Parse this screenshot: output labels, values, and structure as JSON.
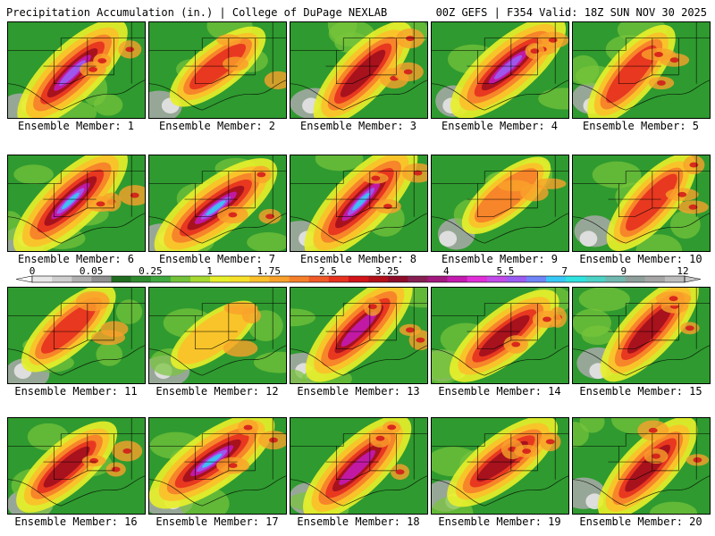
{
  "header": {
    "left": "Precipitation Accumulation (in.) | College of DuPage NEXLAB",
    "right": "00Z GEFS | F354 Valid: 18Z SUN NOV 30 2025"
  },
  "caption_prefix": "Ensemble Member:",
  "members": [
    {
      "id": "1",
      "intensity": 0.85
    },
    {
      "id": "2",
      "intensity": 0.45
    },
    {
      "id": "3",
      "intensity": 0.7
    },
    {
      "id": "4",
      "intensity": 0.85
    },
    {
      "id": "5",
      "intensity": 0.55
    },
    {
      "id": "6",
      "intensity": 0.9
    },
    {
      "id": "7",
      "intensity": 0.9
    },
    {
      "id": "8",
      "intensity": 0.95
    },
    {
      "id": "9",
      "intensity": 0.35
    },
    {
      "id": "10",
      "intensity": 0.55
    },
    {
      "id": "11",
      "intensity": 0.5
    },
    {
      "id": "12",
      "intensity": 0.25
    },
    {
      "id": "13",
      "intensity": 0.8
    },
    {
      "id": "14",
      "intensity": 0.7
    },
    {
      "id": "15",
      "intensity": 0.7
    },
    {
      "id": "16",
      "intensity": 0.6
    },
    {
      "id": "17",
      "intensity": 0.9
    },
    {
      "id": "18",
      "intensity": 0.8
    },
    {
      "id": "19",
      "intensity": 0.7
    },
    {
      "id": "20",
      "intensity": 0.7
    }
  ],
  "colorbar": {
    "labels": [
      "0",
      "0.05",
      "0.25",
      "1",
      "1.75",
      "2.5",
      "3.25",
      "4",
      "5.5",
      "7",
      "9",
      "12"
    ],
    "colors": [
      "#e8e8e8",
      "#cfcfcf",
      "#b0b0b0",
      "#909090",
      "#206c20",
      "#2e8b2e",
      "#3fa83f",
      "#72c23a",
      "#a7d930",
      "#e6ef2a",
      "#f7e02a",
      "#fbc02a",
      "#f9a12b",
      "#f67f2a",
      "#f05a27",
      "#e6321f",
      "#d2141a",
      "#b3101a",
      "#8e0c2a",
      "#861e52",
      "#a2187e",
      "#c41ab0",
      "#e12ed8",
      "#c34be9",
      "#9b5cf2",
      "#6f84f7",
      "#38c8f5",
      "#2fe3e0",
      "#4dd2c6",
      "#70b8b0",
      "#8fa09c",
      "#a6a6a6",
      "#bdbdbd"
    ]
  }
}
